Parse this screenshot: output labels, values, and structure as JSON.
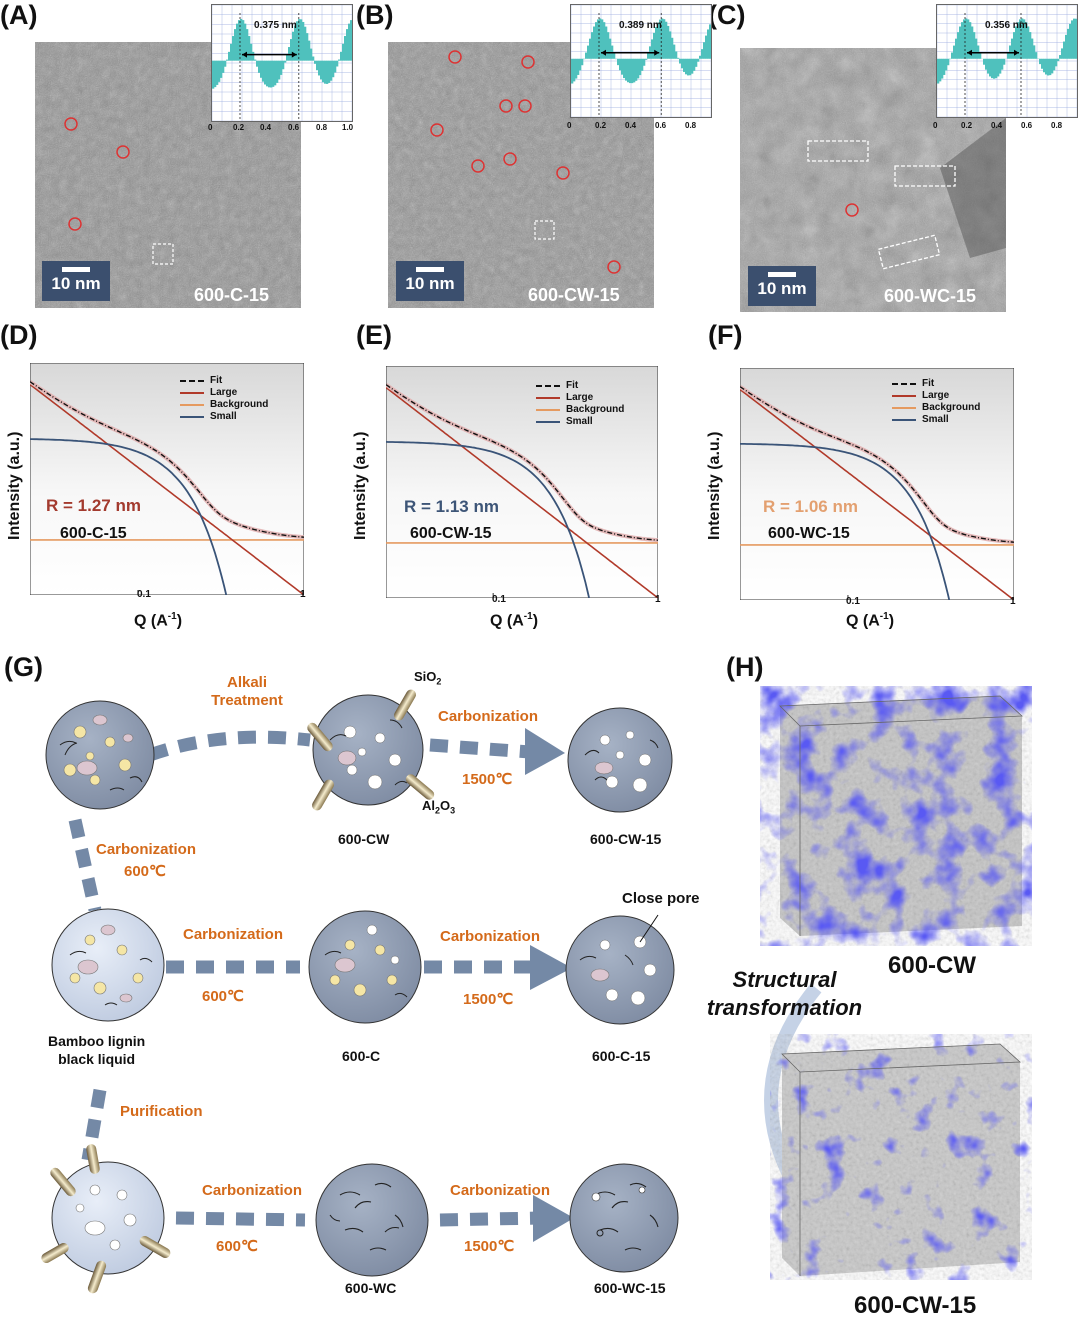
{
  "panels": {
    "A": {
      "label": "(A)",
      "sample": "600-C-15",
      "scale": "10 nm",
      "inset_value": "0.375 nm",
      "inset_ticks": [
        "0",
        "0.2",
        "0.4",
        "0.6",
        "0.8",
        "1.0"
      ]
    },
    "B": {
      "label": "(B)",
      "sample": "600-CW-15",
      "scale": "10 nm",
      "inset_value": "0.389 nm",
      "inset_ticks": [
        "0",
        "0.2",
        "0.4",
        "0.6",
        "0.8"
      ]
    },
    "C": {
      "label": "(C)",
      "sample": "600-WC-15",
      "scale": "10 nm",
      "inset_value": "0.356 nm",
      "inset_ticks": [
        "0",
        "0.2",
        "0.4",
        "0.6",
        "0.8"
      ]
    },
    "D": {
      "label": "(D)",
      "r_text": "R = 1.27 nm",
      "r_color": "#a33a2e",
      "sample": "600-C-15"
    },
    "E": {
      "label": "(E)",
      "r_text": "R = 1.13 nm",
      "r_color": "#3d5577",
      "sample": "600-CW-15"
    },
    "F": {
      "label": "(F)",
      "r_text": "R = 1.06 nm",
      "r_color": "#e3a070",
      "sample": "600-WC-15"
    },
    "G": {
      "label": "(G)"
    },
    "H": {
      "label": "(H)"
    }
  },
  "saxs_common": {
    "ylabel": "Intensity (a.u.)",
    "xlabel_main": "Q (A",
    "xlabel_sup": "-1",
    "xlabel_end": ")",
    "tick_01": "0.1",
    "tick_1": "1",
    "legend": [
      "Fit",
      "Large",
      "Background",
      "Small"
    ],
    "colors": {
      "fit": "#111111",
      "large": "#b13a2a",
      "background": "#e59a60",
      "small": "#3a5478"
    }
  },
  "scheme": {
    "alkali": "Alkali\nTreatment",
    "carbonization": "Carbonization",
    "t600": "600℃",
    "t1500": "1500℃",
    "sio2_main": "SiO",
    "sio2_sub": "2",
    "al2o3_a": "Al",
    "al2o3_sub1": "2",
    "al2o3_b": "O",
    "al2o3_sub2": "3",
    "close_pore": "Close pore",
    "purification": "Purification",
    "bamboo": "Bamboo lignin\nblack liquid",
    "n600cw": "600-CW",
    "n600cw15": "600-CW-15",
    "n600c": "600-C",
    "n600c15": "600-C-15",
    "n600wc": "600-WC",
    "n600wc15": "600-WC-15"
  },
  "model": {
    "top": "600-CW",
    "bottom": "600-CW-15",
    "transform": "Structural\ntransformation"
  }
}
